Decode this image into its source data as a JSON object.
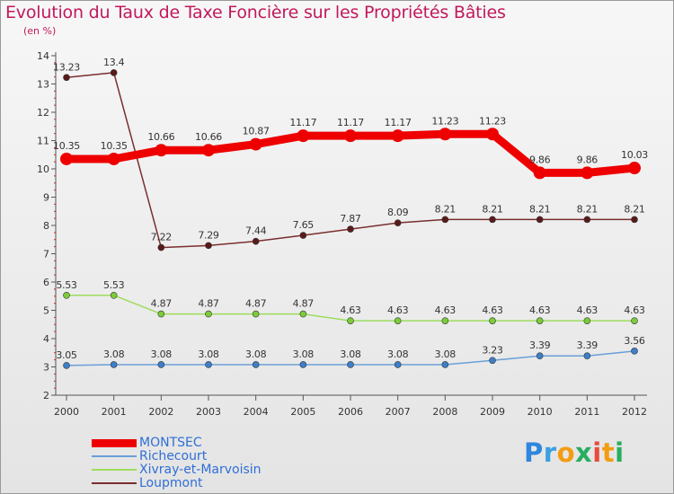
{
  "title": "Evolution du Taux de Taxe Foncière sur les Propriétés Bâties",
  "subtitle": "(en %)",
  "logo": {
    "text": "Proxiti",
    "colors": [
      "#2e86de",
      "#3aa0e0",
      "#f39c12",
      "#27ae60",
      "#e74c3c",
      "#f39c12",
      "#27ae60"
    ]
  },
  "chart_data": {
    "type": "line",
    "title": "Evolution du Taux de Taxe Foncière sur les Propriétés Bâties",
    "ylabel": "(en %)",
    "xlabel": "",
    "ylim": [
      2,
      14
    ],
    "yticks": [
      "2",
      "3",
      "4",
      "5",
      "6",
      "7",
      "8",
      "9",
      "10",
      "11",
      "12",
      "13",
      "14"
    ],
    "x": [
      "2000",
      "2001",
      "2002",
      "2003",
      "2004",
      "2005",
      "2006",
      "2007",
      "2008",
      "2009",
      "2010",
      "2011",
      "2012"
    ],
    "series": [
      {
        "name": "MONTSEC",
        "color": "#ee0000",
        "thick": true,
        "values": [
          10.35,
          10.35,
          10.66,
          10.66,
          10.87,
          11.17,
          11.17,
          11.17,
          11.23,
          11.23,
          9.86,
          9.86,
          10.03
        ],
        "labels": [
          "10.35",
          "10.35",
          "10.66",
          "10.66",
          "10.87",
          "11.17",
          "11.17",
          "11.17",
          "11.23",
          "11.23",
          "9.86",
          "9.86",
          "10.03"
        ]
      },
      {
        "name": "Richecourt",
        "color": "#6a9fd8",
        "marker": "#3d7fc9",
        "values": [
          3.05,
          3.08,
          3.08,
          3.08,
          3.08,
          3.08,
          3.08,
          3.08,
          3.08,
          3.23,
          3.39,
          3.39,
          3.56
        ],
        "labels": [
          "3.05",
          "3.08",
          "3.08",
          "3.08",
          "3.08",
          "3.08",
          "3.08",
          "3.08",
          "3.08",
          "3.23",
          "3.39",
          "3.39",
          "3.56"
        ]
      },
      {
        "name": "Xivray-et-Marvoisin",
        "color": "#9ddc5c",
        "marker": "#7ccc3a",
        "values": [
          5.53,
          5.53,
          4.87,
          4.87,
          4.87,
          4.87,
          4.63,
          4.63,
          4.63,
          4.63,
          4.63,
          4.63,
          4.63
        ],
        "labels": [
          "5.53",
          "5.53",
          "4.87",
          "4.87",
          "4.87",
          "4.87",
          "4.63",
          "4.63",
          "4.63",
          "4.63",
          "4.63",
          "4.63",
          "4.63"
        ]
      },
      {
        "name": "Loupmont",
        "color": "#7a2e2e",
        "marker": "#5a1a1a",
        "values": [
          13.23,
          13.4,
          7.22,
          7.29,
          7.44,
          7.65,
          7.87,
          8.09,
          8.21,
          8.21,
          8.21,
          8.21,
          8.21
        ],
        "labels": [
          "13.23",
          "13.4",
          "7.22",
          "7.29",
          "7.44",
          "7.65",
          "7.87",
          "8.09",
          "8.21",
          "8.21",
          "8.21",
          "8.21",
          "8.21"
        ]
      }
    ]
  }
}
